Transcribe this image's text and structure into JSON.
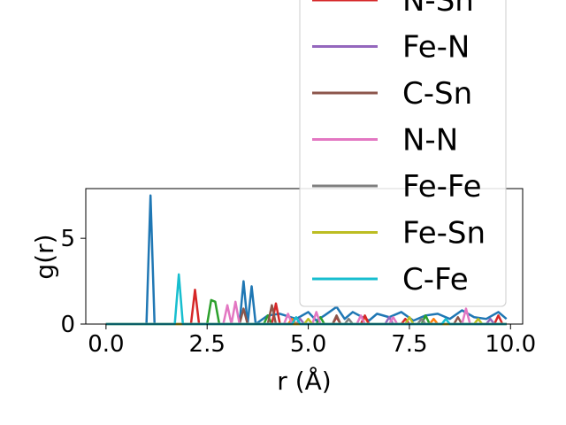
{
  "chart_data": {
    "type": "line",
    "title": "",
    "xlabel": "r (Å)",
    "ylabel": "g(r)",
    "xlim": [
      -0.5,
      10.3
    ],
    "ylim": [
      0,
      7.9
    ],
    "x_ticks": [
      0.0,
      2.5,
      5.0,
      7.5,
      10.0
    ],
    "x_tick_labels": [
      "0.0",
      "2.5",
      "5.0",
      "7.5",
      "10.0"
    ],
    "y_ticks": [
      0,
      5
    ],
    "y_tick_labels": [
      "0",
      "5"
    ],
    "grid": false,
    "legend_position": "upper right",
    "legend_visible_entries": [
      "N-Sn",
      "Fe-N",
      "C-Sn",
      "N-N",
      "Fe-Fe",
      "Fe-Sn",
      "C-Fe"
    ],
    "series": [
      {
        "name": "",
        "color": "#1f77b4",
        "x": [
          0,
          1.0,
          1.1,
          1.2,
          3.3,
          3.4,
          3.5,
          3.6,
          3.7,
          4.0,
          4.3,
          4.7,
          5.0,
          5.2,
          5.4,
          5.7,
          5.9,
          6.1,
          6.5,
          6.7,
          7.0,
          7.3,
          7.6,
          7.9,
          8.2,
          8.5,
          8.8,
          9.1,
          9.4,
          9.7,
          9.9
        ],
        "y": [
          0,
          0,
          7.5,
          0,
          0,
          2.5,
          0,
          2.2,
          0,
          0.5,
          0.6,
          0.3,
          0.7,
          0.2,
          0.5,
          1.0,
          0.3,
          0.7,
          0.2,
          0.6,
          0.4,
          0.7,
          0.2,
          0.5,
          0.6,
          0.3,
          0.8,
          0.4,
          0.3,
          0.7,
          0.3
        ]
      },
      {
        "name": "",
        "color": "#ff7f0e",
        "x": [
          0,
          4.5,
          4.6,
          4.7,
          6.3,
          6.4,
          6.5,
          8.0,
          8.1,
          8.2,
          9.9
        ],
        "y": [
          0,
          0,
          0.3,
          0,
          0,
          0.4,
          0,
          0,
          0.3,
          0,
          0
        ]
      },
      {
        "name": "",
        "color": "#2ca02c",
        "x": [
          0,
          2.5,
          2.6,
          2.7,
          2.8,
          3.9,
          4.0,
          4.1,
          5.2,
          5.3,
          5.4,
          7.8,
          7.9,
          8.0,
          9.9
        ],
        "y": [
          0,
          0,
          1.4,
          1.3,
          0,
          0,
          0.5,
          0,
          0,
          0.4,
          0,
          0,
          0.5,
          0,
          0
        ]
      },
      {
        "name": "N-Sn",
        "color": "#d62728",
        "x": [
          0,
          2.1,
          2.2,
          2.3,
          4.1,
          4.2,
          4.3,
          5.6,
          5.7,
          5.8,
          6.3,
          6.4,
          6.5,
          7.3,
          7.4,
          7.5,
          9.6,
          9.7,
          9.8,
          9.9
        ],
        "y": [
          0,
          0,
          2.0,
          0,
          0,
          1.2,
          0,
          0,
          0.4,
          0,
          0,
          0.5,
          0,
          0,
          0.3,
          0,
          0,
          0.5,
          0,
          0
        ]
      },
      {
        "name": "Fe-N",
        "color": "#9467bd",
        "x": [
          0,
          4.7,
          4.8,
          4.9,
          6.9,
          7.0,
          7.1,
          9.4,
          9.5,
          9.6,
          9.9
        ],
        "y": [
          0,
          0,
          0.3,
          0,
          0,
          0.4,
          0,
          0,
          0.3,
          0,
          0
        ]
      },
      {
        "name": "C-Sn",
        "color": "#8c564b",
        "x": [
          0,
          3.3,
          3.4,
          3.5,
          4.0,
          4.1,
          4.2,
          5.6,
          5.7,
          5.8,
          8.6,
          8.7,
          8.8,
          9.9
        ],
        "y": [
          0,
          0,
          0.9,
          0,
          0,
          1.1,
          0,
          0,
          0.5,
          0,
          0,
          0.4,
          0,
          0
        ]
      },
      {
        "name": "N-N",
        "color": "#e377c2",
        "x": [
          0,
          2.9,
          3.0,
          3.1,
          3.2,
          3.3,
          4.4,
          4.5,
          4.6,
          5.1,
          5.2,
          5.3,
          6.2,
          6.3,
          6.4,
          7.0,
          7.1,
          7.2,
          8.8,
          8.9,
          9.0,
          9.9
        ],
        "y": [
          0,
          0,
          1.1,
          0,
          1.3,
          0,
          0,
          0.6,
          0,
          0,
          0.7,
          0,
          0,
          0.5,
          0,
          0,
          0.4,
          0,
          0,
          0.9,
          0,
          0
        ]
      },
      {
        "name": "Fe-Fe",
        "color": "#7f7f7f",
        "x": [
          0,
          5.9,
          6.0,
          6.1,
          7.7,
          7.8,
          7.9,
          9.9
        ],
        "y": [
          0,
          0,
          0.3,
          0,
          0,
          0.3,
          0,
          0
        ]
      },
      {
        "name": "Fe-Sn",
        "color": "#bcbd22",
        "x": [
          0,
          4.9,
          5.0,
          5.1,
          7.4,
          7.5,
          7.6,
          9.1,
          9.2,
          9.3,
          9.9
        ],
        "y": [
          0,
          0,
          0.3,
          0,
          0,
          0.4,
          0,
          0,
          0.3,
          0,
          0
        ]
      },
      {
        "name": "C-Fe",
        "color": "#17becf",
        "x": [
          0,
          1.7,
          1.8,
          1.9,
          4.6,
          4.7,
          4.8,
          8.3,
          8.4,
          8.5,
          9.9
        ],
        "y": [
          0,
          0,
          2.9,
          0,
          0,
          0.4,
          0,
          0,
          0.3,
          0,
          0
        ]
      }
    ]
  }
}
